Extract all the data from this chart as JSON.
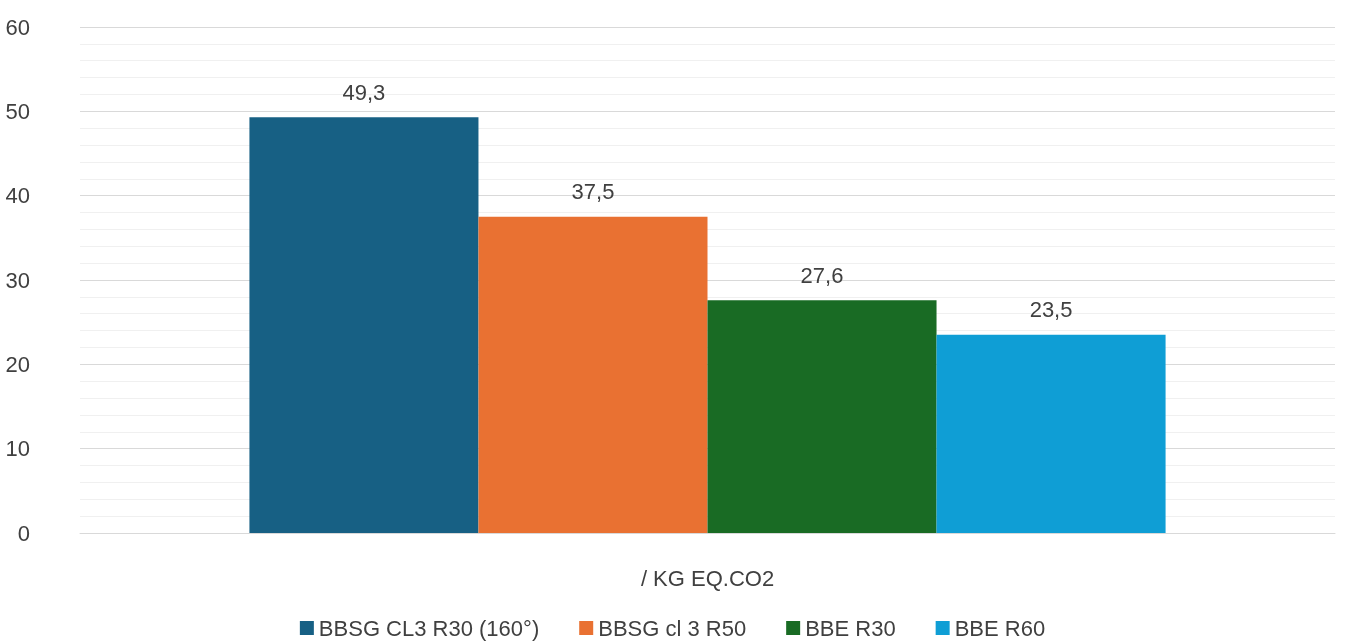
{
  "chart_data": {
    "type": "bar",
    "categories": [
      "/ KG EQ.CO2"
    ],
    "series": [
      {
        "name": "BBSG CL3 R30 (160°)",
        "color": "#176084",
        "values": [
          49.3
        ],
        "value_labels": [
          "49,3"
        ]
      },
      {
        "name": "BBSG cl 3 R50",
        "color": "#e97132",
        "values": [
          37.5
        ],
        "value_labels": [
          "37,5"
        ]
      },
      {
        "name": "BBE R30",
        "color": "#196b24",
        "values": [
          27.6
        ],
        "value_labels": [
          "27,6"
        ]
      },
      {
        "name": "BBE R60",
        "color": "#0f9ed5",
        "values": [
          23.5
        ],
        "value_labels": [
          "23,5"
        ]
      }
    ],
    "ylim": [
      0,
      60
    ],
    "yticks": [
      0,
      10,
      20,
      30,
      40,
      50,
      60
    ],
    "grid": "y",
    "legend": "bottom"
  }
}
